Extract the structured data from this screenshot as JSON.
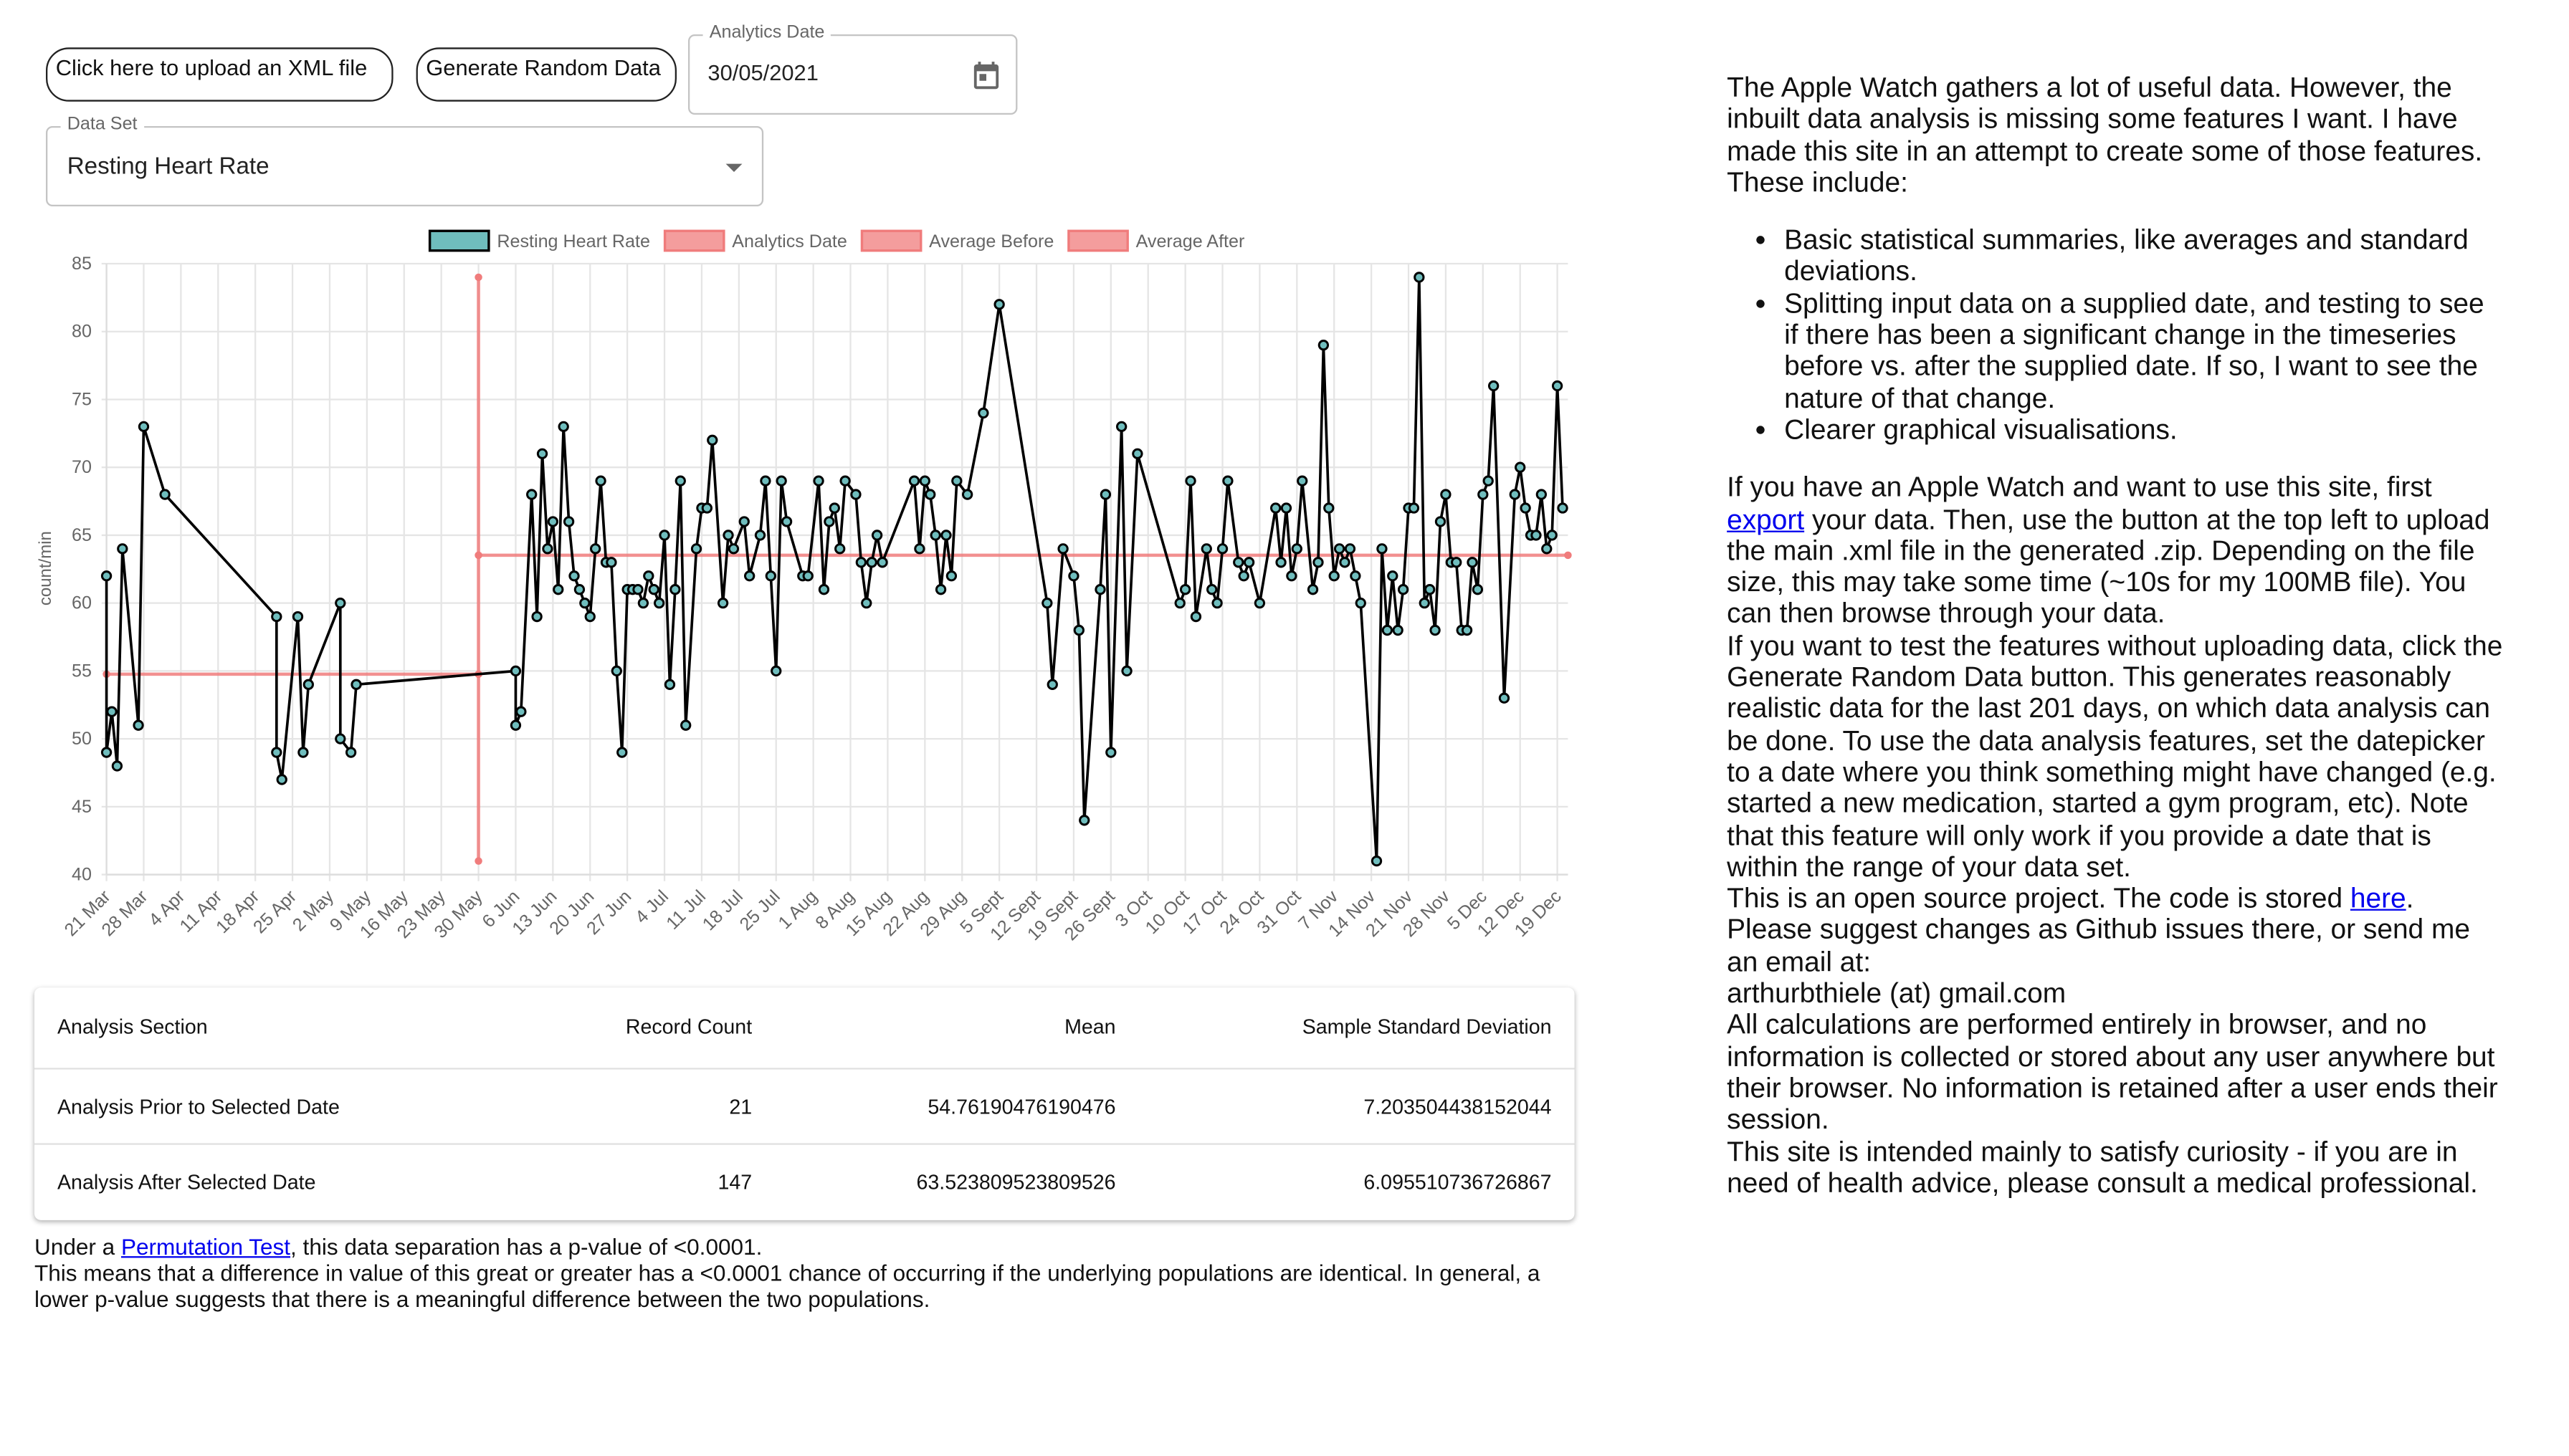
{
  "controls": {
    "upload_button": "Click here to upload an XML file",
    "random_button": "Generate Random Data",
    "date_label": "Analytics Date",
    "date_value": "30/05/2021",
    "dataset_label": "Data Set",
    "dataset_value": "Resting Heart Rate"
  },
  "chart_data": {
    "type": "line",
    "y_label": "count/min",
    "xlim": [
      "21 Mar",
      "21 Dec"
    ],
    "xticks": [
      "21 Mar",
      "28 Mar",
      "4 Apr",
      "11 Apr",
      "18 Apr",
      "25 Apr",
      "2 May",
      "9 May",
      "16 May",
      "23 May",
      "30 May",
      "6 Jun",
      "13 Jun",
      "20 Jun",
      "27 Jun",
      "4 Jul",
      "11 Jul",
      "18 Jul",
      "25 Jul",
      "1 Aug",
      "8 Aug",
      "15 Aug",
      "22 Aug",
      "29 Aug",
      "5 Sept",
      "12 Sept",
      "19 Sept",
      "26 Sept",
      "3 Oct",
      "10 Oct",
      "17 Oct",
      "24 Oct",
      "31 Oct",
      "7 Nov",
      "14 Nov",
      "21 Nov",
      "28 Nov",
      "5 Dec",
      "12 Dec",
      "19 Dec"
    ],
    "ylim": [
      40,
      85
    ],
    "yticks": [
      40,
      45,
      50,
      55,
      60,
      65,
      70,
      75,
      80,
      85
    ],
    "grid": true,
    "legend": "top",
    "series": [
      {
        "name": "Resting Heart Rate",
        "color": "#000000",
        "marker_color": "#6fbdbd",
        "x": [
          "21 Mar",
          "21 Mar",
          "22 Mar",
          "23 Mar",
          "24 Mar",
          "27 Mar",
          "28 Mar",
          "1 Apr",
          "22 Apr",
          "22 Apr",
          "23 Apr",
          "26 Apr",
          "27 Apr",
          "28 Apr",
          "4 May",
          "4 May",
          "6 May",
          "7 May",
          "6 Jun",
          "6 Jun",
          "7 Jun",
          "9 Jun",
          "10 Jun",
          "11 Jun",
          "12 Jun",
          "13 Jun",
          "14 Jun",
          "15 Jun",
          "16 Jun",
          "17 Jun",
          "18 Jun",
          "19 Jun",
          "20 Jun",
          "21 Jun",
          "22 Jun",
          "23 Jun",
          "24 Jun",
          "25 Jun",
          "26 Jun",
          "27 Jun",
          "28 Jun",
          "29 Jun",
          "30 Jun",
          "1 Jul",
          "2 Jul",
          "3 Jul",
          "4 Jul",
          "5 Jul",
          "6 Jul",
          "7 Jul",
          "8 Jul",
          "10 Jul",
          "11 Jul",
          "12 Jul",
          "13 Jul",
          "15 Jul",
          "16 Jul",
          "17 Jul",
          "19 Jul",
          "20 Jul",
          "22 Jul",
          "23 Jul",
          "24 Jul",
          "25 Jul",
          "26 Jul",
          "27 Jul",
          "30 Jul",
          "31 Jul",
          "2 Aug",
          "3 Aug",
          "4 Aug",
          "5 Aug",
          "6 Aug",
          "7 Aug",
          "9 Aug",
          "10 Aug",
          "11 Aug",
          "12 Aug",
          "13 Aug",
          "14 Aug",
          "20 Aug",
          "21 Aug",
          "22 Aug",
          "23 Aug",
          "24 Aug",
          "25 Aug",
          "26 Aug",
          "27 Aug",
          "28 Aug",
          "30 Aug",
          "2 Sept",
          "5 Sept",
          "14 Sept",
          "15 Sept",
          "17 Sept",
          "19 Sept",
          "20 Sept",
          "21 Sept",
          "24 Sept",
          "25 Sept",
          "26 Sept",
          "28 Sept",
          "29 Sept",
          "1 Oct",
          "9 Oct",
          "10 Oct",
          "11 Oct",
          "12 Oct",
          "14 Oct",
          "15 Oct",
          "16 Oct",
          "17 Oct",
          "18 Oct",
          "20 Oct",
          "21 Oct",
          "22 Oct",
          "24 Oct",
          "27 Oct",
          "28 Oct",
          "29 Oct",
          "30 Oct",
          "31 Oct",
          "1 Nov",
          "3 Nov",
          "4 Nov",
          "5 Nov",
          "6 Nov",
          "7 Nov",
          "8 Nov",
          "9 Nov",
          "10 Nov",
          "11 Nov",
          "12 Nov",
          "15 Nov",
          "16 Nov",
          "17 Nov",
          "18 Nov",
          "19 Nov",
          "20 Nov",
          "21 Nov",
          "22 Nov",
          "23 Nov",
          "24 Nov",
          "25 Nov",
          "26 Nov",
          "27 Nov",
          "28 Nov",
          "29 Nov",
          "30 Nov",
          "1 Dec",
          "2 Dec",
          "3 Dec",
          "4 Dec",
          "5 Dec",
          "6 Dec",
          "7 Dec",
          "9 Dec",
          "11 Dec",
          "12 Dec",
          "13 Dec",
          "14 Dec",
          "15 Dec",
          "16 Dec",
          "17 Dec",
          "18 Dec",
          "19 Dec",
          "20 Dec"
        ],
        "values": [
          62,
          49,
          52,
          48,
          64,
          51,
          73,
          68,
          59,
          49,
          47,
          59,
          49,
          54,
          60,
          50,
          49,
          54,
          55,
          51,
          52,
          68,
          59,
          71,
          64,
          66,
          61,
          73,
          66,
          62,
          61,
          60,
          59,
          64,
          69,
          63,
          63,
          55,
          49,
          61,
          61,
          61,
          60,
          62,
          61,
          60,
          65,
          54,
          61,
          69,
          51,
          64,
          67,
          67,
          72,
          60,
          65,
          64,
          66,
          62,
          65,
          69,
          62,
          55,
          69,
          66,
          62,
          62,
          69,
          61,
          66,
          67,
          64,
          69,
          68,
          63,
          60,
          63,
          65,
          63,
          69,
          64,
          69,
          68,
          65,
          61,
          65,
          62,
          69,
          68,
          74,
          82,
          60,
          54,
          64,
          62,
          58,
          44,
          61,
          68,
          49,
          73,
          55,
          71,
          60,
          61,
          69,
          59,
          64,
          61,
          60,
          64,
          69,
          63,
          62,
          63,
          60,
          67,
          63,
          67,
          62,
          64,
          69,
          61,
          63,
          79,
          67,
          62,
          64,
          63,
          64,
          62,
          60,
          41,
          64,
          58,
          62,
          58,
          61,
          67,
          67,
          84,
          60,
          61,
          58,
          66,
          68,
          63,
          63,
          58,
          58,
          63,
          61,
          68,
          69,
          76,
          53,
          68,
          70,
          67,
          65,
          65,
          68,
          64,
          65,
          76,
          67
        ]
      },
      {
        "name": "Analytics Date",
        "color": "#f07c7c",
        "x": [
          "30 May",
          "30 May"
        ],
        "values": [
          41,
          84
        ]
      },
      {
        "name": "Average Before",
        "color": "#f07c7c",
        "x": [
          "21 Mar",
          "30 May"
        ],
        "values": [
          54.76190476190476,
          54.76190476190476
        ]
      },
      {
        "name": "Average After",
        "color": "#f07c7c",
        "x": [
          "30 May",
          "21 Dec"
        ],
        "values": [
          63.523809523809526,
          63.523809523809526
        ]
      }
    ]
  },
  "table": {
    "header": [
      "Analysis Section",
      "Record Count",
      "Mean",
      "Sample Standard Deviation"
    ],
    "rows": [
      [
        "Analysis Prior to Selected Date",
        "21",
        "54.76190476190476",
        "7.203504438152044"
      ],
      [
        "Analysis After Selected Date",
        "147",
        "63.523809523809526",
        "6.095510736726867"
      ]
    ]
  },
  "result": {
    "prefix": "Under a ",
    "link": "Permutation Test",
    "suffix": ", this data separation has a p-value of <0.0001.",
    "explanation": "This means that a difference in value of this great or greater has a <0.0001 chance of occurring if the underlying populations are identical. In general, a lower p-value suggests that there is a meaningful difference between the two populations."
  },
  "about": {
    "intro": "The Apple Watch gathers a lot of useful data. However, the inbuilt data analysis is missing some features I want. I have made this site in an attempt to create some of those features. These include:",
    "bullets": [
      "Basic statistical summaries, like averages and standard deviations.",
      "Splitting input data on a supplied date, and testing to see if there has been a significant change in the timeseries before vs. after the supplied date. If so, I want to see the nature of that change.",
      "Clearer graphical visualisations."
    ],
    "usage": [
      "If you have an Apple Watch and want to use this site, first ",
      "export",
      " your data. Then, use the button at the top left to upload the main .xml file in the generated .zip. Depending on the file size, this may take some time (~10s for my 100MB file). You can then browse through your data."
    ],
    "random": "If you want to test the features without uploading data, click the Generate Random Data button. This generates reasonably realistic data for the last 201 days, on which data analysis can be done. To use the data analysis features, set the datepicker to a date where you think something might have changed (e.g. started a new medication, started a gym program, etc). Note that this feature will only work if you provide a date that is within the range of your data set.",
    "source": [
      "This is an open source project. The code is stored ",
      "here",
      ". Please suggest changes as Github issues there, or send me an email at:"
    ],
    "email": "arthurbthiele (at) gmail.com",
    "privacy": "All calculations are performed entirely in browser, and no information is collected or stored about any user anywhere but their browser. No information is retained after a user ends their session.",
    "disclaimer": "This site is intended mainly to satisfy curiosity - if you are in need of health advice, please consult a medical professional."
  }
}
